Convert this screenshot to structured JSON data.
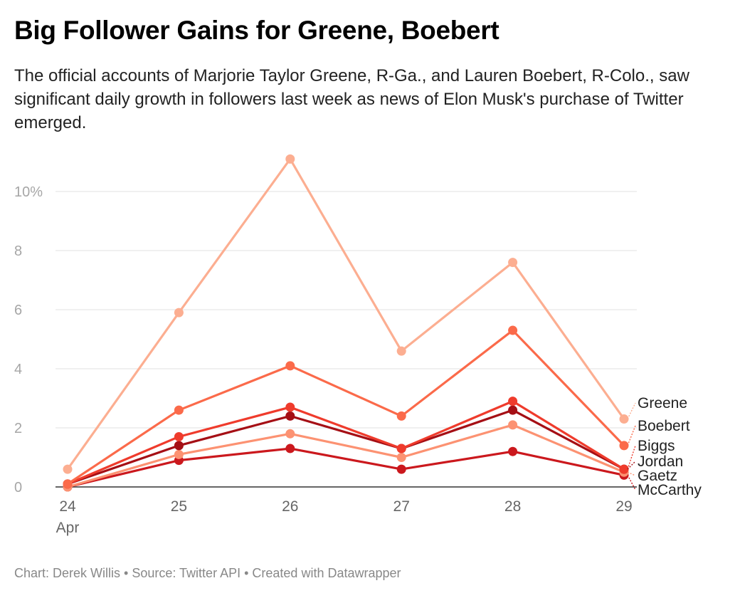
{
  "header": {
    "title": "Big Follower Gains for Greene, Boebert",
    "subtitle": "The official accounts of Marjorie Taylor Greene, R-Ga., and Lauren Boebert, R-Colo., saw significant daily growth in followers last week as news of Elon Musk's purchase of Twitter emerged."
  },
  "footer": {
    "chart_by": "Chart: Derek Willis",
    "separator": " • ",
    "source": "Source: Twitter API",
    "created_with": "Created with Datawrapper"
  },
  "chart_data": {
    "type": "line",
    "x": [
      "24",
      "25",
      "26",
      "27",
      "28",
      "29"
    ],
    "x_sublabel": "Apr",
    "y_ticks": [
      "0",
      "2",
      "4",
      "6",
      "8",
      "10%"
    ],
    "y_tick_values": [
      0,
      2,
      4,
      6,
      8,
      10
    ],
    "ylim": [
      0,
      11.1
    ],
    "grid": true,
    "legend": "direct labels at right end",
    "series": [
      {
        "name": "Greene",
        "color": "#fcae91",
        "values": [
          0.6,
          5.9,
          11.1,
          4.6,
          7.6,
          2.3
        ]
      },
      {
        "name": "Boebert",
        "color": "#fb6a4a",
        "values": [
          0.1,
          2.6,
          4.1,
          2.4,
          5.3,
          1.4
        ]
      },
      {
        "name": "Biggs",
        "color": "#ef3b2c",
        "values": [
          0.1,
          1.7,
          2.7,
          1.3,
          2.9,
          0.6
        ]
      },
      {
        "name": "Jordan",
        "color": "#a50f15",
        "values": [
          0.1,
          1.4,
          2.4,
          1.3,
          2.6,
          0.6
        ]
      },
      {
        "name": "Gaetz",
        "color": "#fc9272",
        "values": [
          0.0,
          1.1,
          1.8,
          1.0,
          2.1,
          0.5
        ]
      },
      {
        "name": "McCarthy",
        "color": "#cb181d",
        "values": [
          0.0,
          0.9,
          1.3,
          0.6,
          1.2,
          0.4
        ]
      }
    ]
  }
}
